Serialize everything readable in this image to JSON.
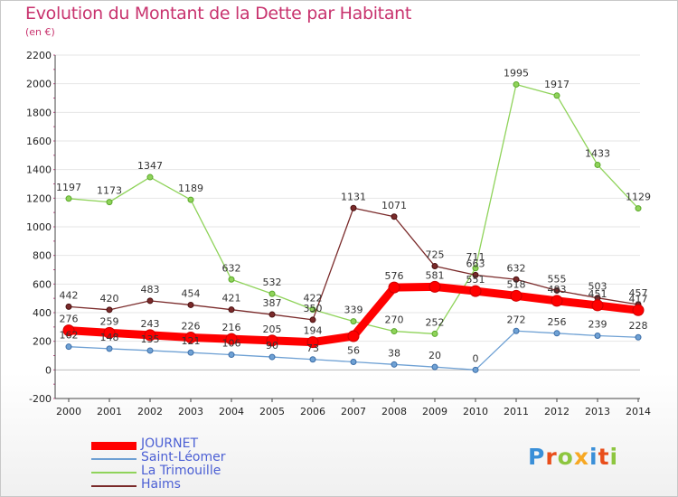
{
  "title": "Evolution du Montant de la Dette par Habitant",
  "unit": "(en €)",
  "logo": "Proxiti",
  "chart_data": {
    "type": "line",
    "title": "Evolution du Montant de la Dette par Habitant",
    "ylabel": "(en €)",
    "x": [
      2000,
      2001,
      2002,
      2003,
      2004,
      2005,
      2006,
      2007,
      2008,
      2009,
      2010,
      2011,
      2012,
      2013,
      2014
    ],
    "ylim": [
      -200,
      2200
    ],
    "yticks": [
      -200,
      0,
      200,
      400,
      600,
      800,
      1000,
      1200,
      1400,
      1600,
      1800,
      2000,
      2200
    ],
    "grid": "horizontal",
    "legend_position": "bottom-left",
    "series": [
      {
        "name": "JOURNET",
        "color": "#ff0000",
        "values": [
          276,
          259,
          243,
          226,
          216,
          205,
          194,
          236,
          576,
          581,
          551,
          518,
          483,
          451,
          417
        ],
        "labels": [
          "276",
          "259",
          "243",
          "226",
          "216",
          "205",
          "194",
          "",
          "576",
          "581",
          "551",
          "518",
          "483",
          "451",
          "417"
        ]
      },
      {
        "name": "Saint-Léomer",
        "color": "#6fa1d4",
        "values": [
          162,
          148,
          135,
          121,
          106,
          90,
          73,
          56,
          38,
          20,
          0,
          272,
          256,
          239,
          228
        ],
        "labels": [
          "162",
          "148",
          "135",
          "121",
          "106",
          "90",
          "73",
          "56",
          "38",
          "20",
          "0",
          "272",
          "256",
          "239",
          "228"
        ]
      },
      {
        "name": "La Trimouille",
        "color": "#8fd35a",
        "values": [
          1197,
          1173,
          1347,
          1189,
          632,
          532,
          422,
          339,
          270,
          252,
          711,
          1995,
          1917,
          1433,
          1129
        ],
        "labels": [
          "1197",
          "1173",
          "1347",
          "1189",
          "632",
          "532",
          "422",
          "339",
          "270",
          "252",
          "711",
          "1995",
          "1917",
          "1433",
          "1129"
        ]
      },
      {
        "name": "Haims",
        "color": "#7a2a2a",
        "values": [
          442,
          420,
          483,
          454,
          421,
          387,
          350,
          1131,
          1071,
          725,
          663,
          632,
          555,
          503,
          457
        ],
        "labels": [
          "442",
          "420",
          "483",
          "454",
          "421",
          "387",
          "350",
          "1131",
          "1071",
          "725",
          "663",
          "632",
          "555",
          "503",
          "457"
        ]
      }
    ]
  }
}
